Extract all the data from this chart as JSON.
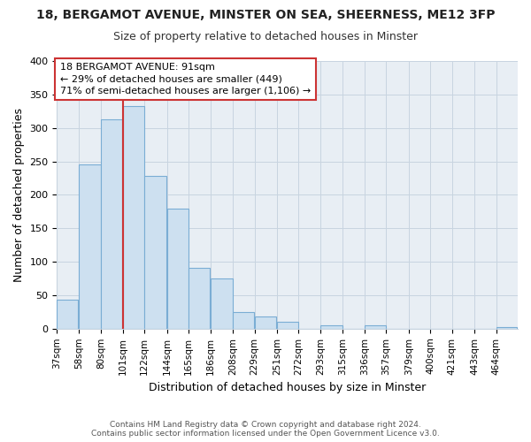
{
  "title_line1": "18, BERGAMOT AVENUE, MINSTER ON SEA, SHEERNESS, ME12 3FP",
  "title_line2": "Size of property relative to detached houses in Minster",
  "xlabel": "Distribution of detached houses by size in Minster",
  "ylabel": "Number of detached properties",
  "footer_line1": "Contains HM Land Registry data © Crown copyright and database right 2024.",
  "footer_line2": "Contains public sector information licensed under the Open Government Licence v3.0.",
  "bar_labels": [
    "37sqm",
    "58sqm",
    "80sqm",
    "101sqm",
    "122sqm",
    "144sqm",
    "165sqm",
    "186sqm",
    "208sqm",
    "229sqm",
    "251sqm",
    "272sqm",
    "293sqm",
    "315sqm",
    "336sqm",
    "357sqm",
    "379sqm",
    "400sqm",
    "421sqm",
    "443sqm",
    "464sqm"
  ],
  "bar_values": [
    44,
    245,
    313,
    333,
    228,
    180,
    91,
    75,
    25,
    18,
    10,
    0,
    5,
    0,
    5,
    0,
    0,
    0,
    0,
    0,
    2
  ],
  "bar_color": "#cde0f0",
  "bar_edge_color": "#7aadd4",
  "annotation_line1": "18 BERGAMOT AVENUE: 91sqm",
  "annotation_line2": "← 29% of detached houses are smaller (449)",
  "annotation_line3": "71% of semi-detached houses are larger (1,106) →",
  "property_line_x": 101,
  "ylim": [
    0,
    400
  ],
  "xlim_min": 37,
  "xlim_max": 485,
  "background_color": "#ffffff",
  "plot_bg_color": "#e8eef4",
  "grid_color": "#c8d4e0",
  "annotation_box_color": "#ffffff",
  "annotation_box_edge": "#cc3333",
  "property_line_color": "#cc3333",
  "title1_fontsize": 10,
  "title2_fontsize": 9,
  "ylabel_fontsize": 9,
  "xlabel_fontsize": 9,
  "tick_fontsize": 7.5,
  "ann_fontsize": 8
}
